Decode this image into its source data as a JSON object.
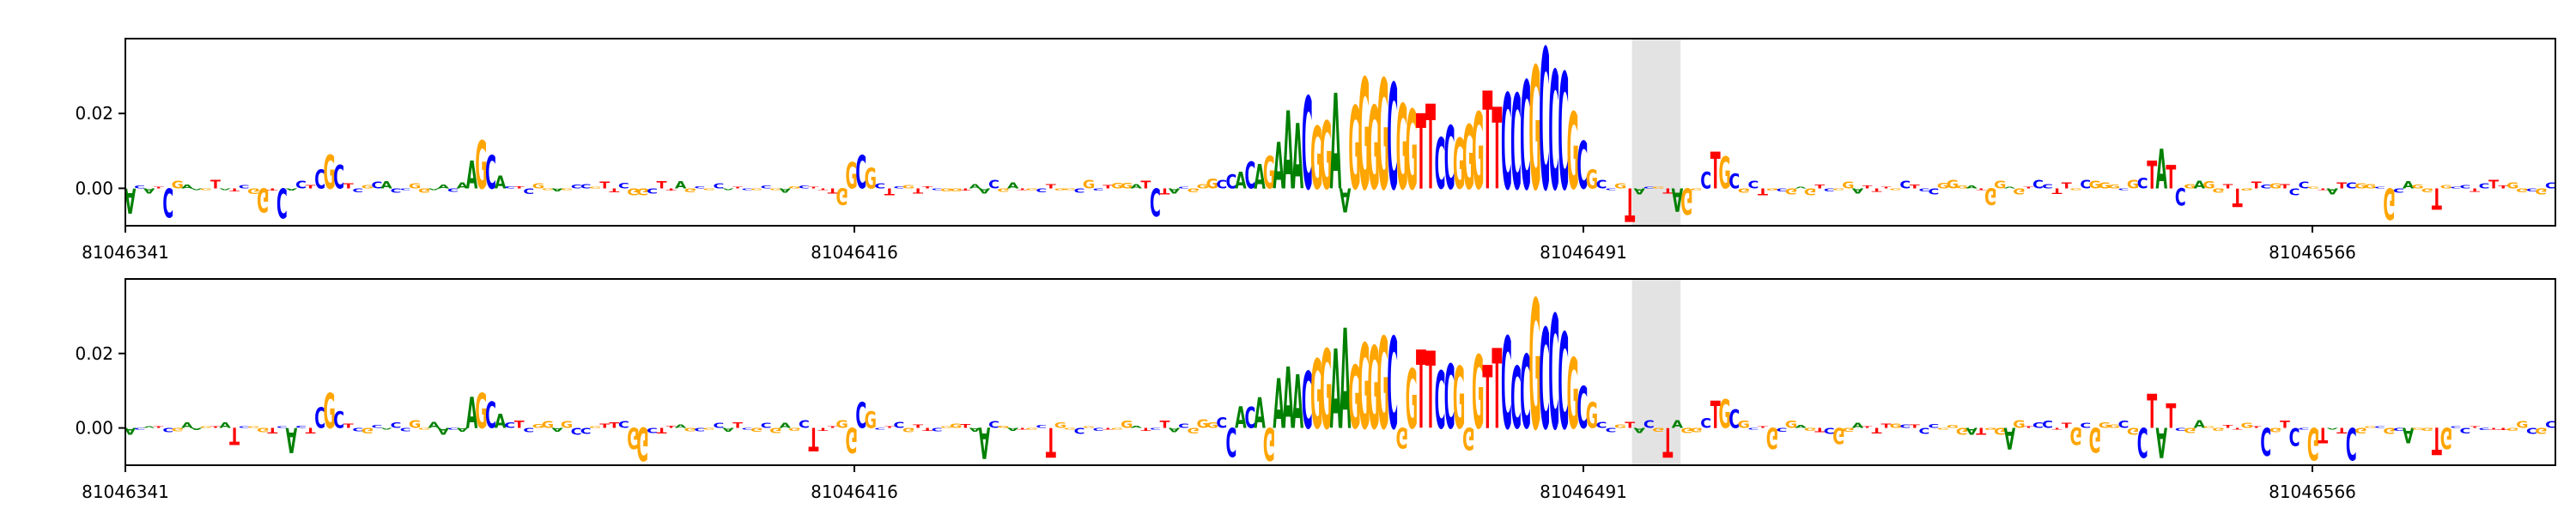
{
  "chart_data": [
    {
      "type": "sequence-logo (attribution)",
      "panel": "top",
      "x_tick_labels": [
        "81046341",
        "81046416",
        "81046491",
        "81046566"
      ],
      "x_range": [
        81046341,
        81046591
      ],
      "y_tick_labels": [
        "0.02",
        "0.00"
      ],
      "ylim": [
        -0.01,
        0.04
      ],
      "highlight_region": [
        81046496,
        81046501
      ],
      "sequence": "ACATCGAAGTATCGGTCACTCGCTCGCACCGGAACAAGCACTCGGAGCCGTTCGGCTTAGCGCATCGCGAGCTTTGGCGCTCGTTCGGTAACGATGCTGGCGCTGGATCTACGGGCCACAGAAACGGAAGGGGCGGTTCCGGGTTCCCGCCCGCGCCGTACGTAGGCTGCGCTGCGAGTCGGATTTGCTCCGGGATGGAGTCCTTGCGGGCGCTATCGAGGTTGTCGTCCGTATCGGCGCAGGTGCCTCTTGGCGC",
      "letter_colors": {
        "A": "#008000",
        "C": "#0000ff",
        "G": "#ffa500",
        "T": "#ff0000"
      },
      "grid": false,
      "legend": "none"
    },
    {
      "type": "sequence-logo (attribution)",
      "panel": "bottom",
      "x_tick_labels": [
        "81046341",
        "81046416",
        "81046491",
        "81046566"
      ],
      "x_range": [
        81046341,
        81046591
      ],
      "y_tick_labels": [
        "0.02",
        "0.00"
      ],
      "ylim": [
        -0.01,
        0.04
      ],
      "highlight_region": [
        81046496,
        81046501
      ],
      "sequence": "ACATCGAAGTATCGGTCACTCGCTCGCACCGGAACAAGCACTCGGAGCCGTTCGGCTTAGCGCATCGCGAGCTTTGGCGCTCGTTCGGTAACGATGCTGGCGCTGGATCTACGGGCCACAGAAACGGAAGGGGCGGTTCCGGGTTCCCGCCCGCGCCGTACGTAGGCTGCGCTGCGAGTCGGATTTGCTCCGGGATGGAGTCCTTGCGGGCGCTATCGAGGTTGTCGTCCGTATCGGCGCAGGTGCCTCTTGGCGC",
      "letter_colors": {
        "A": "#008000",
        "C": "#0000ff",
        "G": "#ffa500",
        "T": "#ff0000"
      },
      "grid": false,
      "legend": "none"
    }
  ]
}
